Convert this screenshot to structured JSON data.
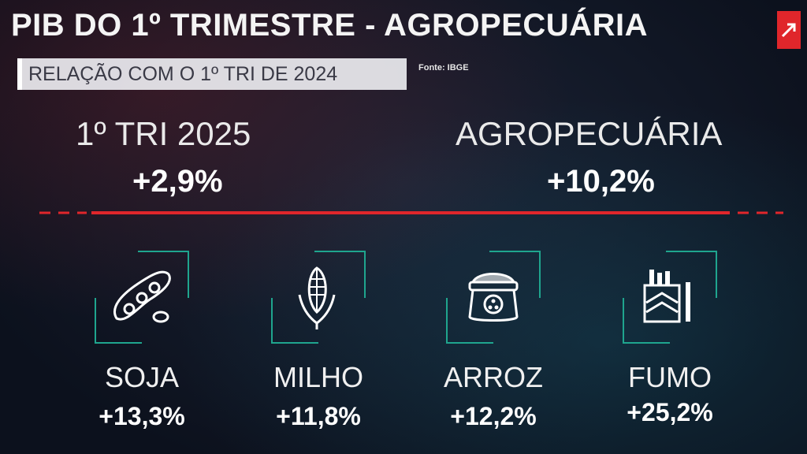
{
  "header": {
    "title": "PIB DO 1º TRIMESTRE - AGROPECUÁRIA",
    "subtitle": "RELAÇÃO COM O 1º TRI DE 2024",
    "source": "Fonte: IBGE"
  },
  "kpis": [
    {
      "label": "1º TRI 2025",
      "value": "+2,9%"
    },
    {
      "label": "AGROPECUÁRIA",
      "value": "+10,2%"
    }
  ],
  "items": [
    {
      "label": "SOJA",
      "value": "+13,3%",
      "icon": "soybean-icon"
    },
    {
      "label": "MILHO",
      "value": "+11,8%",
      "icon": "corn-icon"
    },
    {
      "label": "ARROZ",
      "value": "+12,2%",
      "icon": "rice-sack-icon"
    },
    {
      "label": "FUMO",
      "value": "+25,2%",
      "icon": "cigarette-pack-icon"
    }
  ],
  "colors": {
    "accent_red": "#e0262b",
    "frame_teal": "#1fa58e",
    "background": "#0c111d"
  }
}
